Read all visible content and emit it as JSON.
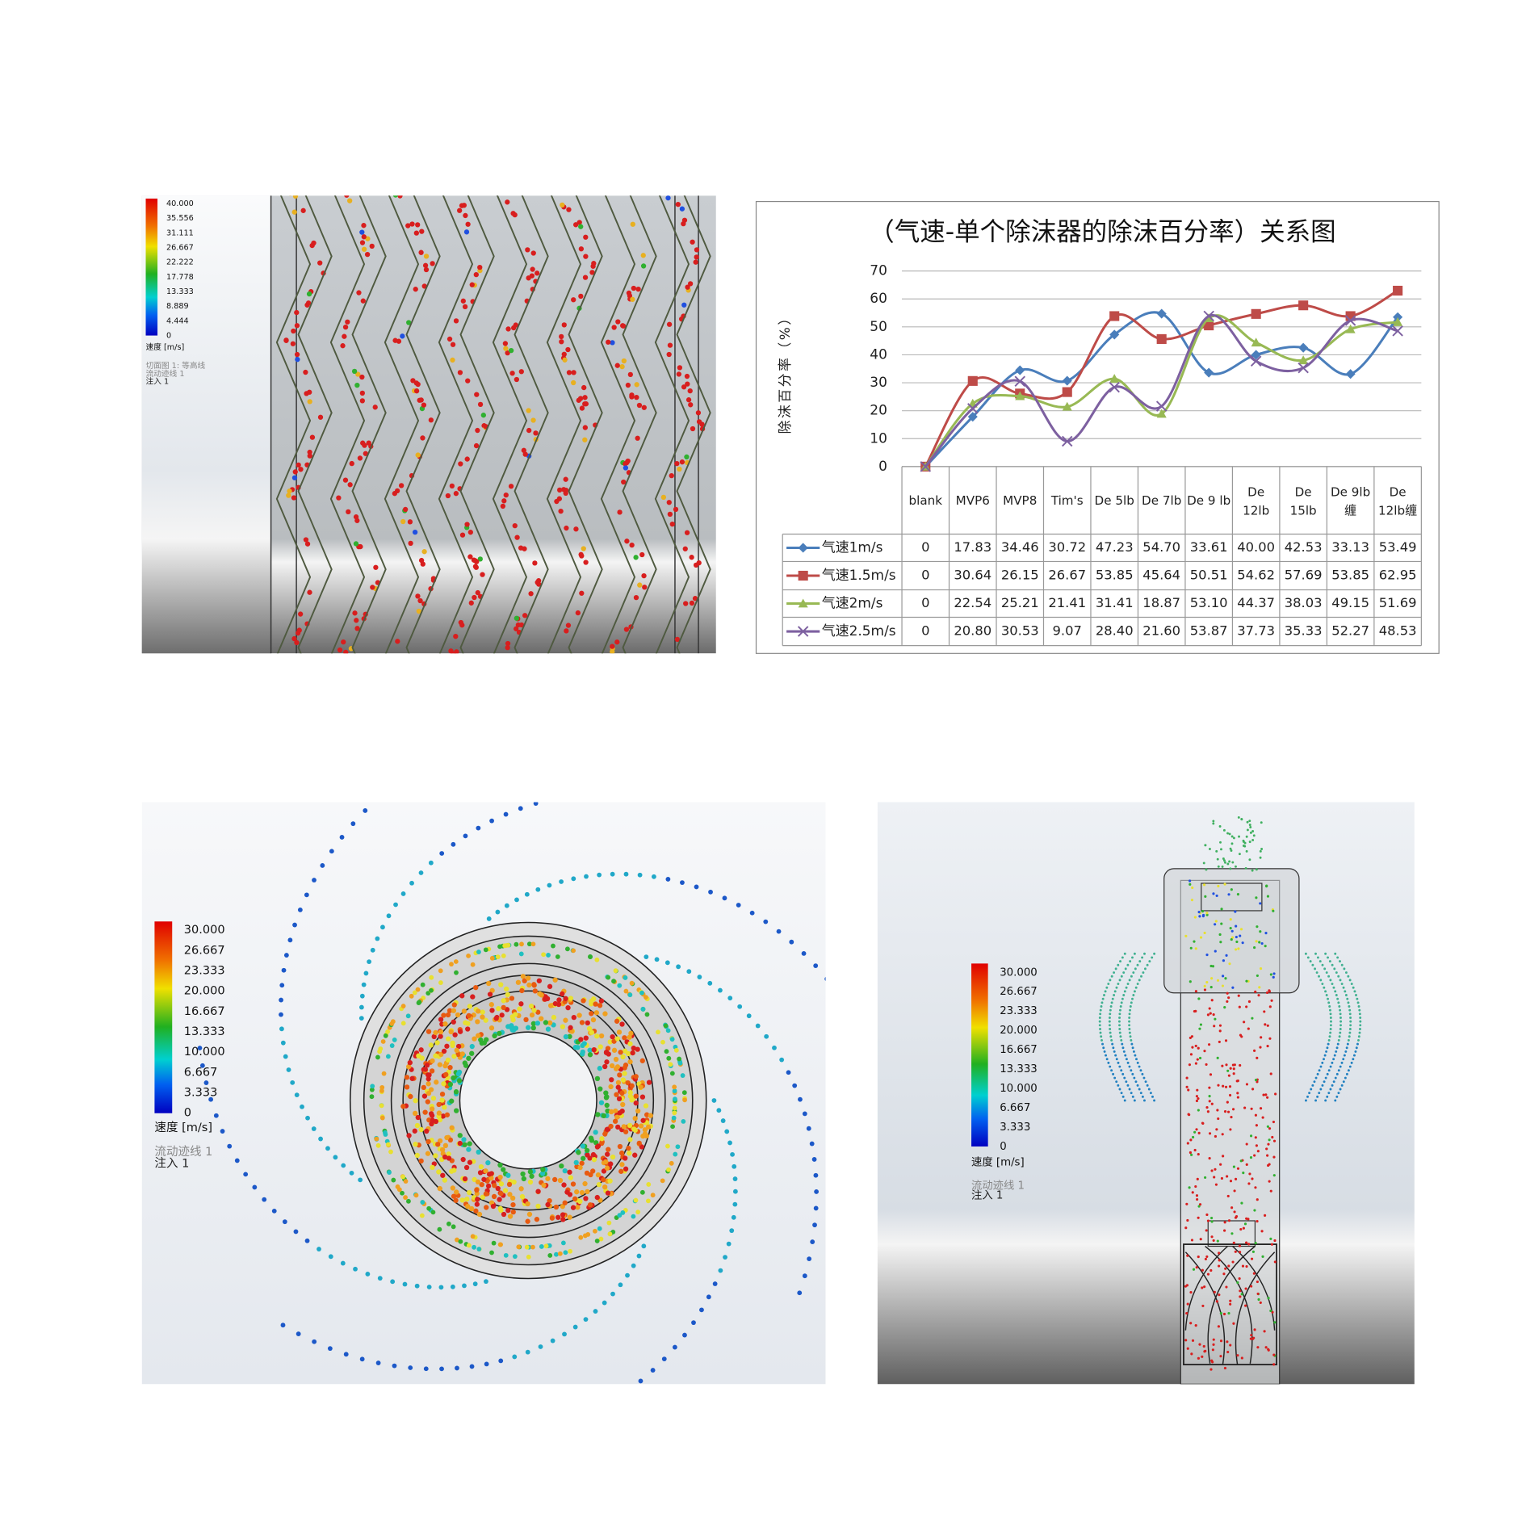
{
  "panels": [
    {
      "legend_ticks": [
        "40.000",
        "35.556",
        "31.111",
        "26.667",
        "22.222",
        "17.778",
        "13.333",
        "8.889",
        "4.444",
        "0"
      ],
      "legend_title": "速度 [m/s]",
      "notes": [
        "切面图 1: 等高线",
        "流动迹线 1",
        "注入 1"
      ]
    },
    {
      "legend_ticks": [
        "30.000",
        "26.667",
        "23.333",
        "20.000",
        "16.667",
        "13.333",
        "10.000",
        "6.667",
        "3.333",
        "0"
      ],
      "legend_title": "速度 [m/s]",
      "notes": [
        "流动迹线 1",
        "注入 1"
      ]
    },
    {
      "legend_ticks": [
        "30.000",
        "26.667",
        "23.333",
        "20.000",
        "16.667",
        "13.333",
        "10.000",
        "6.667",
        "3.333",
        "0"
      ],
      "legend_title": "速度 [m/s]",
      "notes": [
        "流动迹线 1",
        "注入 1"
      ]
    }
  ],
  "chart_data": {
    "type": "line",
    "title": "（气速-单个除沫器的除沫百分率）关系图",
    "y_label": "除沫百分率（%）",
    "categories": [
      "blank",
      "MVP6",
      "MVP8",
      "Tim's",
      "De 5lb",
      "De 7lb",
      "De 9 lb",
      "De 12lb",
      "De 15lb",
      "De 9lb缠",
      "De 12lb缠"
    ],
    "series": [
      {
        "name": "气速1m/s",
        "color": "#4a7ebb",
        "marker": "diamond",
        "values": [
          0,
          17.83,
          34.46,
          30.72,
          47.23,
          54.7,
          33.61,
          40,
          42.53,
          33.13,
          53.49
        ],
        "value_labels": [
          "0",
          "17.83",
          "34.46",
          "30.72",
          "47.23",
          "54.70",
          "33.61",
          "40.00",
          "42.53",
          "33.13",
          "53.49"
        ]
      },
      {
        "name": "气速1.5m/s",
        "color": "#be4b48",
        "marker": "square",
        "values": [
          0,
          30.64,
          26.15,
          26.67,
          53.85,
          45.64,
          50.51,
          54.62,
          57.69,
          53.85,
          62.95
        ],
        "value_labels": [
          "0",
          "30.64",
          "26.15",
          "26.67",
          "53.85",
          "45.64",
          "50.51",
          "54.62",
          "57.69",
          "53.85",
          "62.95"
        ]
      },
      {
        "name": "气速2m/s",
        "color": "#98b954",
        "marker": "triangle",
        "values": [
          0,
          22.54,
          25.21,
          21.41,
          31.41,
          18.87,
          53.1,
          44.37,
          38.03,
          49.15,
          51.69
        ],
        "value_labels": [
          "0",
          "22.54",
          "25.21",
          "21.41",
          "31.41",
          "18.87",
          "53.10",
          "44.37",
          "38.03",
          "49.15",
          "51.69"
        ]
      },
      {
        "name": "气速2.5m/s",
        "color": "#7d60a0",
        "marker": "x",
        "values": [
          0,
          20.8,
          30.53,
          9.07,
          28.4,
          21.6,
          53.87,
          37.73,
          35.33,
          52.27,
          48.53
        ],
        "value_labels": [
          "0",
          "20.80",
          "30.53",
          "9.07",
          "28.40",
          "21.60",
          "53.87",
          "37.73",
          "35.33",
          "52.27",
          "48.53"
        ]
      }
    ],
    "ylim": [
      0,
      70
    ],
    "yticks": [
      0,
      10,
      20,
      30,
      40,
      50,
      60,
      70
    ],
    "grid": true
  }
}
